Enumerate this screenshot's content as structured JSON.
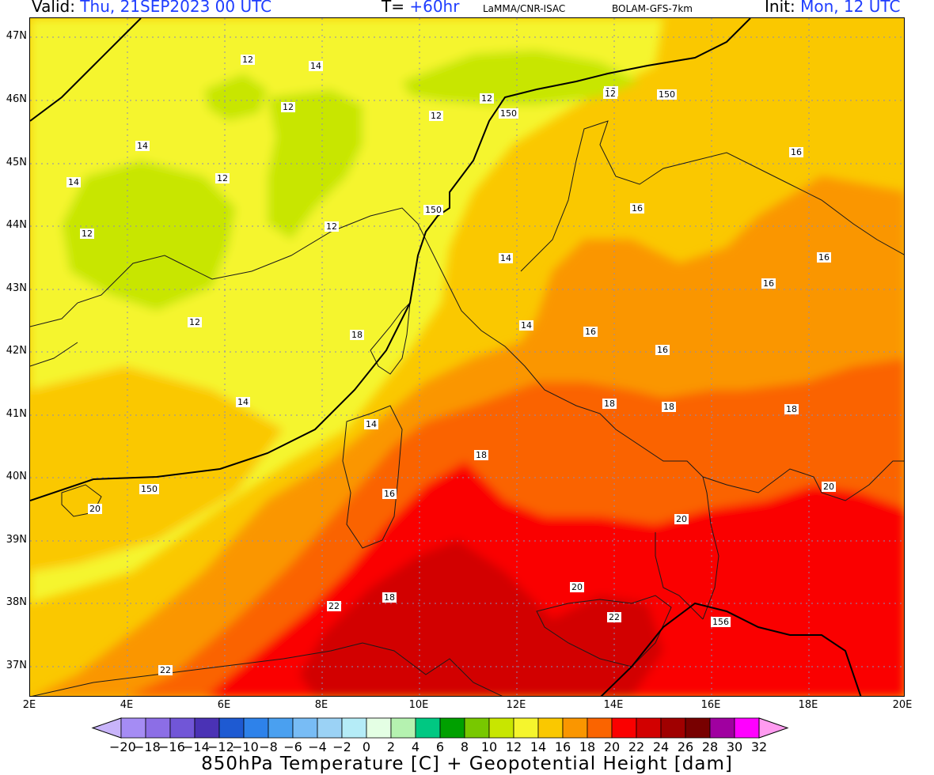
{
  "header": {
    "valid_label": "Valid:",
    "valid_time": "Thu, 21SEP2023   00 UTC",
    "forecast_label": "T=",
    "forecast_step": "+60hr",
    "source": "LaMMA/CNR-ISAC",
    "model": "BOLAM-GFS-7km",
    "init_label": "Init:",
    "init_time": "Mon, 12 UTC"
  },
  "axes": {
    "lat_labels": [
      "47N",
      "46N",
      "45N",
      "44N",
      "43N",
      "42N",
      "41N",
      "40N",
      "39N",
      "38N",
      "37N"
    ],
    "lon_labels": [
      "2E",
      "4E",
      "6E",
      "8E",
      "10E",
      "12E",
      "14E",
      "16E",
      "18E",
      "20E"
    ]
  },
  "contour_labels": {
    "temperature": [
      "12",
      "14",
      "12",
      "12",
      "12",
      "14",
      "14",
      "12",
      "12",
      "12",
      "12",
      "12",
      "14",
      "14",
      "12",
      "16",
      "16",
      "16",
      "16",
      "14",
      "16",
      "16",
      "18",
      "18",
      "18",
      "18",
      "14",
      "16",
      "18",
      "20",
      "20",
      "20",
      "18",
      "22",
      "22",
      "22",
      "20",
      "18",
      "16",
      "22"
    ],
    "height": [
      "150",
      "150",
      "150",
      "150",
      "156"
    ]
  },
  "colorbar": {
    "ticks": [
      "−20",
      "−18",
      "−16",
      "−14",
      "−12",
      "−10",
      "−8",
      "−6",
      "−4",
      "−2",
      "0",
      "2",
      "4",
      "6",
      "8",
      "10",
      "12",
      "14",
      "16",
      "18",
      "20",
      "22",
      "24",
      "26",
      "28",
      "30",
      "32"
    ],
    "colors": [
      "#a58cf4",
      "#8c6ee6",
      "#7156d7",
      "#4a32b5",
      "#1e5ad2",
      "#2e82ea",
      "#4aa0f0",
      "#78bcf5",
      "#9bd2f5",
      "#b5ecf7",
      "#e4ffe4",
      "#b5f2b0",
      "#00c882",
      "#00a000",
      "#78c800",
      "#c8e600",
      "#f5f52d",
      "#fac800",
      "#fa9600",
      "#fa6400",
      "#fa0000",
      "#d20000",
      "#a00000",
      "#780000",
      "#a000a0",
      "#ff00ff"
    ],
    "under_color": "#c8b4fa",
    "over_color": "#ff9bf0"
  },
  "caption": "850hPa Temperature [C] + Geopotential Height [dam]"
}
